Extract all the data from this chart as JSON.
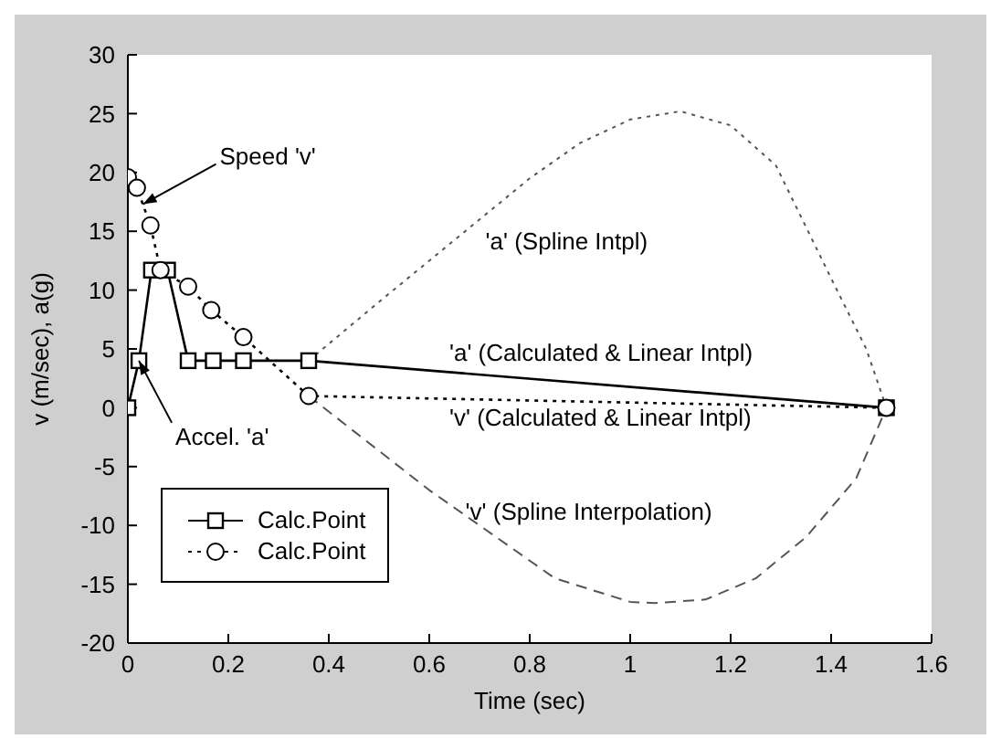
{
  "chart_data": {
    "type": "line",
    "xlabel": "Time (sec)",
    "ylabel": "v (m/sec), a(g)",
    "xlim": [
      0,
      1.6
    ],
    "xticks": [
      0,
      0.2,
      0.4,
      0.6,
      0.8,
      1,
      1.2,
      1.4,
      1.6
    ],
    "ylim": [
      -20,
      30
    ],
    "yticks": [
      -20,
      -15,
      -10,
      -5,
      0,
      5,
      10,
      15,
      20,
      25,
      30
    ],
    "grid": false,
    "legend": "bottom left",
    "series": [
      {
        "name": "Calc.Point",
        "color": "#000000",
        "marker": "square",
        "line_style": "solid",
        "x": [
          0,
          0.022,
          0.047,
          0.079,
          0.12,
          0.17,
          0.23,
          0.36,
          1.51
        ],
        "values": [
          0,
          4,
          11.7,
          11.7,
          4,
          4,
          4,
          4,
          0
        ]
      },
      {
        "name": "Calc.Point",
        "color": "#000000",
        "marker": "circle",
        "line_style": "dotted",
        "x": [
          0,
          0.018,
          0.045,
          0.065,
          0.12,
          0.166,
          0.23,
          0.36,
          1.51
        ],
        "values": [
          19.6,
          18.7,
          15.5,
          11.7,
          10.3,
          8.3,
          6,
          1,
          0
        ]
      },
      {
        "color": "#555555",
        "marker": "none",
        "line_style": "dotted",
        "x": [
          0.36,
          0.5,
          0.6,
          0.7,
          0.8,
          0.9,
          1,
          1.1,
          1.2,
          1.29,
          1.4,
          1.47,
          1.51
        ],
        "values": [
          4,
          9,
          12.5,
          16,
          19.5,
          22.5,
          24.5,
          25.2,
          24,
          20.6,
          11,
          5,
          0
        ]
      },
      {
        "color": "#555555",
        "marker": "none",
        "line_style": "dashed",
        "x": [
          0.36,
          0.45,
          0.6,
          0.73,
          0.85,
          1,
          1.05,
          1.15,
          1.25,
          1.35,
          1.45,
          1.51
        ],
        "values": [
          1,
          -2,
          -7,
          -10.9,
          -14.5,
          -16.5,
          -16.6,
          -16.3,
          -14.5,
          -11,
          -6,
          0
        ]
      }
    ],
    "annotations": [
      {
        "text": "Speed 'v'",
        "x": 0.03,
        "y": 17.3
      },
      {
        "text": "Accel. 'a'",
        "x": 0.022,
        "y": 4
      },
      "'a' (Spline Intpl)",
      "'a' (Calculated & Linear Intpl)",
      "'v' (Calculated & Linear Intpl)",
      "'v' (Spline Interpolation)"
    ]
  }
}
